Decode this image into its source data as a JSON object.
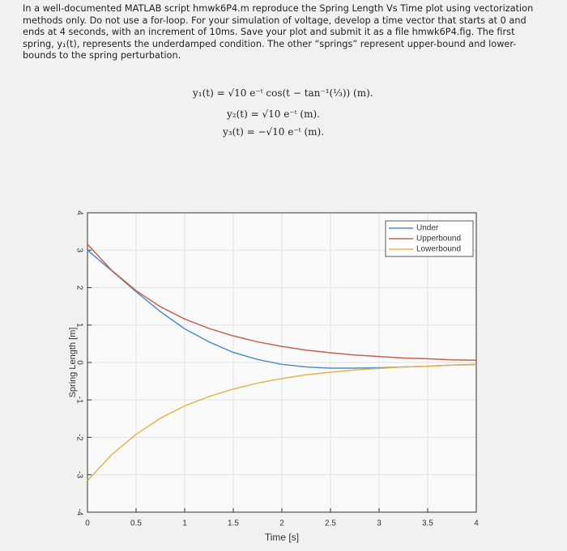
{
  "text": {
    "paragraph": "In a well-documented MATLAB script hmwk6P4.m reproduce the Spring Length Vs Time plot using vectorization methods only. Do not use a for-loop. For your simulation of voltage, develop a time vector that starts at 0 and ends at 4 seconds, with an increment of 10ms. Save your plot and submit it as a file hmwk6P4.fig. The first spring, y₁(t), represents the underdamped condition. The other “springs” represent upper-bound and lower-bounds to the spring perturbation.",
    "equations": [
      "y₁(t) = √10 e⁻ᵗ cos(t − tan⁻¹(⅓)) (m).",
      "y₂(t) = √10 e⁻ᵗ (m).",
      "y₃(t) = −√10 e⁻ᵗ (m)."
    ]
  },
  "chart_data": {
    "type": "line",
    "xlabel": "Time [s]",
    "ylabel": "Spring Length [m]",
    "x": [
      0,
      0.25,
      0.5,
      0.75,
      1,
      1.25,
      1.5,
      1.75,
      2,
      2.25,
      2.5,
      2.75,
      3,
      3.25,
      3.5,
      3.75,
      4
    ],
    "series": [
      {
        "name": "Under",
        "color": "#4f8ec9",
        "values": [
          3.0,
          2.45,
          1.89,
          1.36,
          0.9,
          0.55,
          0.27,
          0.08,
          -0.05,
          -0.12,
          -0.15,
          -0.15,
          -0.14,
          -0.12,
          -0.1,
          -0.07,
          -0.05
        ]
      },
      {
        "name": "Upperbound",
        "color": "#c8614a",
        "values": [
          3.16,
          2.46,
          1.92,
          1.49,
          1.16,
          0.91,
          0.71,
          0.55,
          0.43,
          0.33,
          0.26,
          0.2,
          0.16,
          0.12,
          0.1,
          0.07,
          0.06
        ]
      },
      {
        "name": "Lowerbound",
        "color": "#e2b64c",
        "values": [
          -3.16,
          -2.46,
          -1.92,
          -1.49,
          -1.16,
          -0.91,
          -0.71,
          -0.55,
          -0.43,
          -0.33,
          -0.26,
          -0.2,
          -0.16,
          -0.12,
          -0.1,
          -0.07,
          -0.06
        ]
      }
    ],
    "xlim": [
      0,
      4
    ],
    "ylim": [
      -4,
      4
    ],
    "xticks": [
      0,
      0.5,
      1,
      1.5,
      2,
      2.5,
      3,
      3.5,
      4
    ],
    "yticks": [
      -4,
      -3,
      -2,
      -1,
      0,
      1,
      2,
      3,
      4
    ],
    "grid": true,
    "legend": "upper right"
  }
}
